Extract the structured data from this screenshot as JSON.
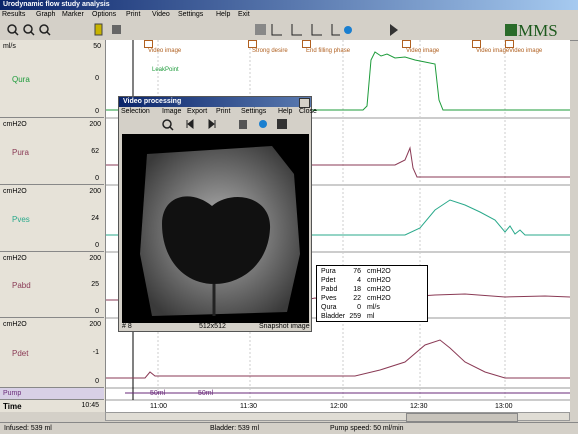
{
  "window": {
    "title": "Urodynamic flow study analysis",
    "menu": [
      "Results",
      "Graph",
      "Marker",
      "Options",
      "Print",
      "Video",
      "Settings",
      "Help",
      "Exit"
    ],
    "logo": "MMS"
  },
  "channels": [
    {
      "unit": "ml/s",
      "max": 50,
      "name": "Qura",
      "value": 0,
      "zero": 0
    },
    {
      "unit": "cmH2O",
      "max": 200,
      "name": "Pura",
      "value": 62,
      "zero": 0
    },
    {
      "unit": "cmH2O",
      "max": 200,
      "name": "Pves",
      "value": 24,
      "zero": 0
    },
    {
      "unit": "cmH2O",
      "max": 200,
      "name": "Pabd",
      "value": 25,
      "zero": 0
    },
    {
      "unit": "cmH2O",
      "max": 200,
      "name": "Pdet",
      "value": -1,
      "zero": 0
    }
  ],
  "pump": {
    "label": "Pump",
    "marks": [
      "50ml",
      "50ml"
    ]
  },
  "time": {
    "label": "Time",
    "current": "10:45",
    "ticks": [
      "11:00",
      "11:30",
      "12:00",
      "12:30",
      "13:00"
    ]
  },
  "markers": [
    "Video image",
    "LeakPoint",
    "Strong desire",
    "End filling phase",
    "Video image",
    "Video image",
    "Video image"
  ],
  "status": [
    "Infused: 539 ml",
    "Bladder: 539 ml",
    "Pump speed: 50 ml/min"
  ],
  "video_window": {
    "title": "Video processing",
    "menu": [
      "Selection",
      "Image",
      "Export",
      "Print",
      "Settings",
      "Help",
      "Close"
    ],
    "status": [
      "# 8",
      "512x512",
      "Snapshot image"
    ]
  },
  "readout": [
    {
      "name": "Pura",
      "value": "76",
      "unit": "cmH2O"
    },
    {
      "name": "Pdet",
      "value": "4",
      "unit": "cmH2O"
    },
    {
      "name": "Pabd",
      "value": "18",
      "unit": "cmH2O"
    },
    {
      "name": "Pves",
      "value": "22",
      "unit": "cmH2O"
    },
    {
      "name": "Qura",
      "value": "0",
      "unit": "ml/s"
    },
    {
      "name": "Bladder",
      "value": "259",
      "unit": "ml"
    }
  ]
}
